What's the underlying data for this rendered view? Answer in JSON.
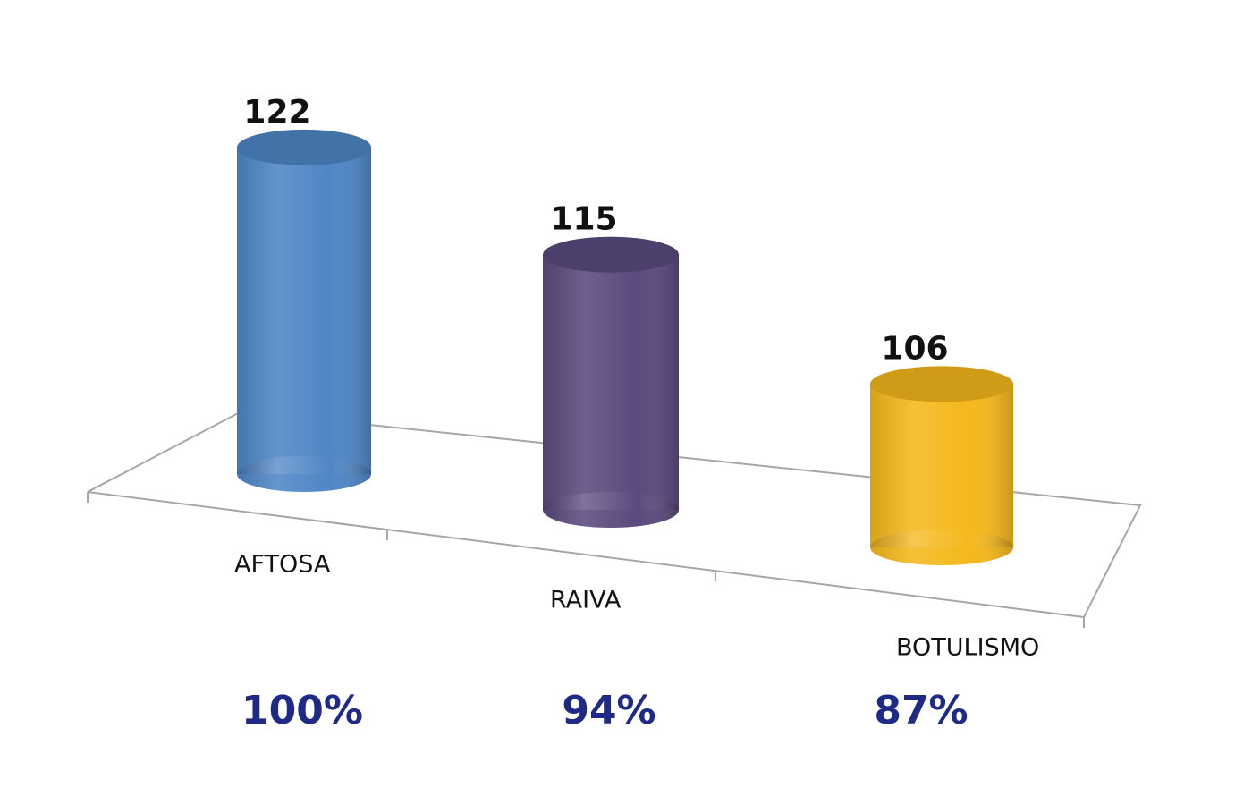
{
  "chart_data": {
    "type": "bar",
    "categories": [
      "AFTOSA",
      "RAIVA",
      "BOTULISMO"
    ],
    "values": [
      122,
      115,
      106
    ],
    "colors": [
      "#4f86c6",
      "#5b4a7e",
      "#f5b81c"
    ],
    "annotations": [
      "100%",
      "94%",
      "87%"
    ],
    "ylim": [
      90,
      124
    ]
  }
}
